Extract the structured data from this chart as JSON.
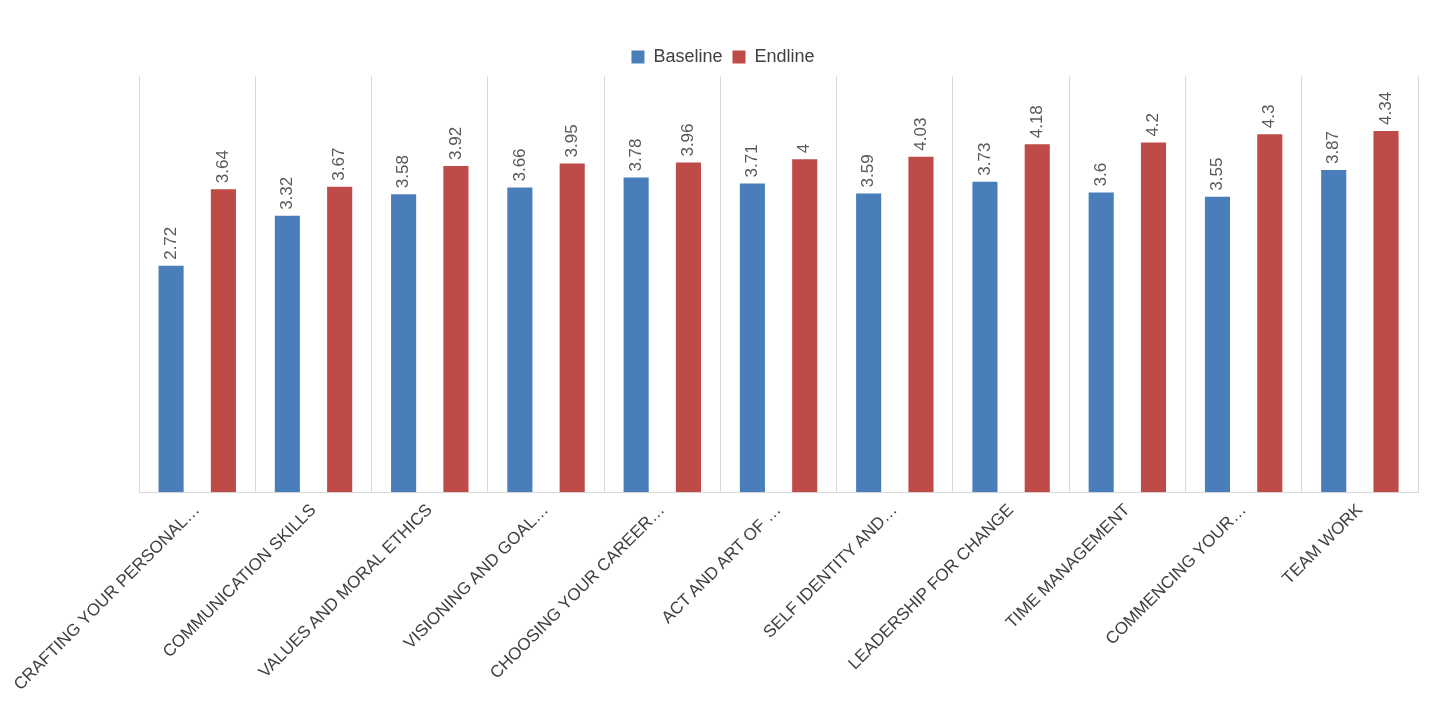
{
  "chart_data": {
    "type": "bar",
    "categories": [
      "CRAFTING YOUR PERSONAL…",
      "COMMUNICATION SKILLS",
      "VALUES AND MORAL ETHICS",
      "VISIONING AND GOAL…",
      "CHOOSING YOUR CAREER…",
      "ACT AND ART OF …",
      "SELF IDENTITY AND…",
      "LEADERSHIP FOR CHANGE",
      "TIME MANAGEMENT",
      "COMMENCING YOUR…",
      "TEAM WORK"
    ],
    "series": [
      {
        "name": "Baseline",
        "color": "#4a7ebb",
        "values": [
          2.72,
          3.32,
          3.58,
          3.66,
          3.78,
          3.71,
          3.59,
          3.73,
          3.6,
          3.55,
          3.87
        ]
      },
      {
        "name": "Endline",
        "color": "#be4b48",
        "values": [
          3.64,
          3.67,
          3.92,
          3.95,
          3.96,
          4,
          4.03,
          4.18,
          4.2,
          4.3,
          4.34
        ]
      }
    ],
    "data_labels": true,
    "grid": "x",
    "legend": "top",
    "tick_labels": "x"
  }
}
